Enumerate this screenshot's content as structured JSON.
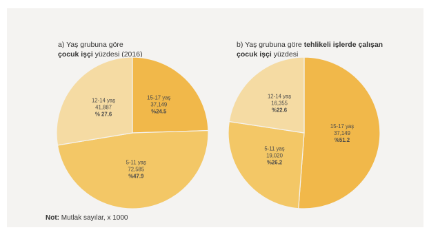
{
  "panels": {
    "a": {
      "prefix": "a) Yaş grubuna göre",
      "bold": "çocuk işçi",
      "suffix": "yüzdesi (2016)"
    },
    "b": {
      "prefix": "b) Yaş grubuna göre",
      "bold": "tehlikeli işlerde çalışan çocuk işçi",
      "suffix": "yüzdesi"
    }
  },
  "note": {
    "label": "Not:",
    "text": "Mutlak sayılar, x 1000"
  },
  "colors": {
    "15-17 yaş": "#f1b84a",
    "12-14 yaş": "#f5dba3",
    "5-11 yaş": "#f3c766"
  },
  "chart_data": [
    {
      "type": "pie",
      "title": "a) Yaş grubuna göre çocuk işçi yüzdesi (2016)",
      "slices": [
        {
          "label": "15-17 yaş",
          "count": "37,149",
          "percent_label": "%24.5",
          "value": 24.5
        },
        {
          "label": "5-11 yaş",
          "count": "72,585",
          "percent_label": "%47.9",
          "value": 47.9
        },
        {
          "label": "12-14 yaş",
          "count": "41,887",
          "percent_label": "% 27.6",
          "value": 27.6
        }
      ]
    },
    {
      "type": "pie",
      "title": "b) Yaş grubuna göre tehlikeli işlerde çalışan çocuk işçi yüzdesi",
      "slices": [
        {
          "label": "15-17 yaş",
          "count": "37,149",
          "percent_label": "%51.2",
          "value": 51.2
        },
        {
          "label": "5-11 yaş",
          "count": "19,020",
          "percent_label": "%26.2",
          "value": 26.2
        },
        {
          "label": "12-14 yaş",
          "count": "16,355",
          "percent_label": "%22.6",
          "value": 22.6
        }
      ]
    }
  ]
}
